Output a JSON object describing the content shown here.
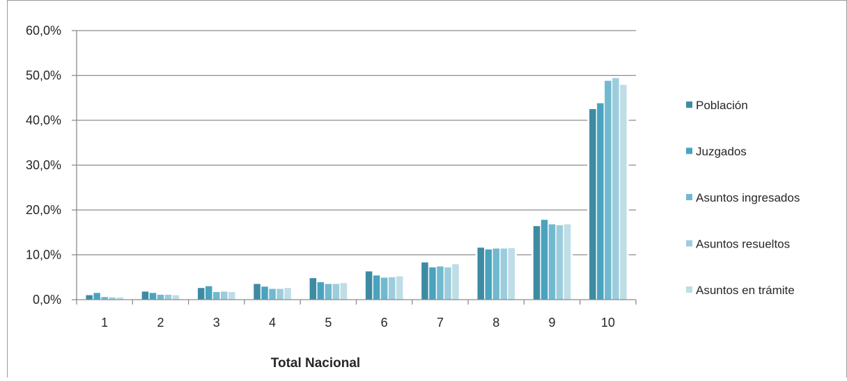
{
  "chart_data": {
    "type": "bar",
    "title": "",
    "xlabel": "Total Nacional",
    "ylabel": "",
    "categories": [
      "1",
      "2",
      "3",
      "4",
      "5",
      "6",
      "7",
      "8",
      "9",
      "10"
    ],
    "ylim": [
      0,
      60
    ],
    "yticks": [
      0,
      10,
      20,
      30,
      40,
      50,
      60
    ],
    "ytick_labels": [
      "0,0%",
      "10,0%",
      "20,0%",
      "30,0%",
      "40,0%",
      "50,0%",
      "60,0%"
    ],
    "grid": true,
    "legend_position": "right",
    "series": [
      {
        "name": "Población",
        "color": "#3D8BA3",
        "values": [
          1.0,
          1.8,
          2.6,
          3.5,
          4.8,
          6.3,
          8.3,
          11.6,
          16.4,
          42.5
        ]
      },
      {
        "name": "Juzgados",
        "color": "#4AA3BE",
        "values": [
          1.5,
          1.5,
          3.0,
          2.9,
          3.9,
          5.4,
          7.2,
          11.2,
          17.8,
          43.8
        ]
      },
      {
        "name": "Asuntos ingresados",
        "color": "#72B9CF",
        "values": [
          0.6,
          1.1,
          1.7,
          2.4,
          3.5,
          4.9,
          7.4,
          11.4,
          16.8,
          48.8
        ]
      },
      {
        "name": "Asuntos resueltos",
        "color": "#9CCDDC",
        "values": [
          0.5,
          1.1,
          1.8,
          2.4,
          3.5,
          5.0,
          7.2,
          11.4,
          16.6,
          49.4
        ]
      },
      {
        "name": "Asuntos en trámite",
        "color": "#BFDDE7",
        "values": [
          0.5,
          1.0,
          1.7,
          2.6,
          3.7,
          5.2,
          7.9,
          11.5,
          16.8,
          47.9
        ]
      }
    ]
  }
}
